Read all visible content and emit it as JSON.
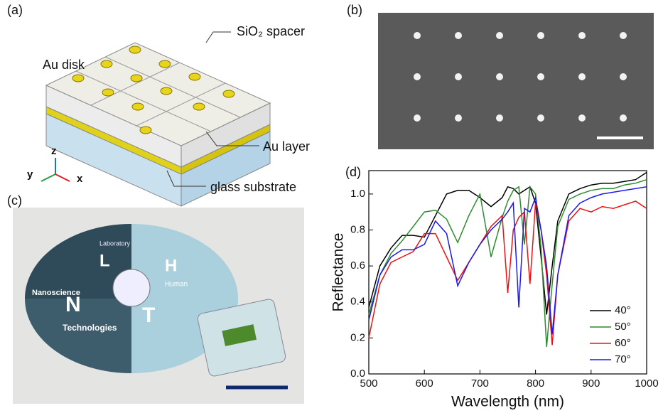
{
  "panels": {
    "a": {
      "label": "(a)",
      "au_disk": "Au disk",
      "spacer": "SiO₂ spacer",
      "au_layer": "Au layer",
      "substrate": "glass substrate",
      "axis_x": "x",
      "axis_y": "y",
      "axis_z": "z"
    },
    "b": {
      "label": "(b)"
    },
    "c": {
      "label": "(c)",
      "words": [
        "Laboratory",
        "Nanoscience",
        "Human",
        "Technologies"
      ],
      "letters": [
        "L",
        "H",
        "N",
        "T"
      ]
    },
    "d": {
      "label": "(d)"
    }
  },
  "chart_data": {
    "type": "line",
    "x_label": "Wavelength (nm)",
    "y_label": "Reflectance",
    "xlim": [
      500,
      1000
    ],
    "xticks": [
      500,
      600,
      700,
      800,
      900,
      1000
    ],
    "ylim": [
      0,
      1.13
    ],
    "yticks": [
      {
        "value": 0,
        "label": "0.0"
      },
      0.2,
      0.4,
      0.6,
      0.8,
      {
        "value": 1,
        "label": "1.0"
      }
    ],
    "legend": "lower right",
    "x": [
      500,
      520,
      540,
      560,
      580,
      600,
      620,
      640,
      660,
      680,
      700,
      720,
      740,
      750,
      760,
      770,
      780,
      790,
      800,
      810,
      820,
      830,
      840,
      860,
      880,
      900,
      920,
      940,
      960,
      980,
      1000
    ],
    "series": [
      {
        "name": "40°",
        "color": "#000000",
        "values": [
          0.37,
          0.6,
          0.7,
          0.77,
          0.77,
          0.76,
          0.88,
          1.0,
          1.02,
          1.02,
          0.98,
          0.93,
          0.98,
          1.04,
          1.03,
          1.0,
          1.02,
          1.04,
          0.95,
          0.65,
          0.33,
          0.6,
          0.85,
          1.0,
          1.03,
          1.05,
          1.06,
          1.06,
          1.07,
          1.08,
          1.12
        ]
      },
      {
        "name": "50°",
        "color": "#2e8b2e",
        "values": [
          0.33,
          0.55,
          0.67,
          0.74,
          0.82,
          0.9,
          0.91,
          0.86,
          0.73,
          0.88,
          1.0,
          0.65,
          0.87,
          0.96,
          1.02,
          1.04,
          0.72,
          1.04,
          1.0,
          0.7,
          0.15,
          0.5,
          0.82,
          0.97,
          1.0,
          1.02,
          1.03,
          1.03,
          1.05,
          1.06,
          1.08
        ]
      },
      {
        "name": "60°",
        "color": "#ee1111",
        "values": [
          0.2,
          0.5,
          0.62,
          0.65,
          0.68,
          0.78,
          0.78,
          0.65,
          0.52,
          0.62,
          0.72,
          0.82,
          0.88,
          0.45,
          0.8,
          0.87,
          0.9,
          0.5,
          0.95,
          0.8,
          0.55,
          0.16,
          0.55,
          0.85,
          0.92,
          0.9,
          0.93,
          0.92,
          0.94,
          0.96,
          0.92
        ]
      },
      {
        "name": "70°",
        "color": "#1a1aee",
        "values": [
          0.3,
          0.55,
          0.65,
          0.69,
          0.69,
          0.72,
          0.85,
          0.78,
          0.49,
          0.62,
          0.72,
          0.8,
          0.86,
          0.9,
          0.95,
          0.37,
          0.92,
          0.9,
          0.98,
          0.8,
          0.6,
          0.22,
          0.55,
          0.88,
          0.95,
          0.98,
          1.0,
          1.01,
          1.02,
          1.03,
          1.04
        ]
      }
    ]
  }
}
